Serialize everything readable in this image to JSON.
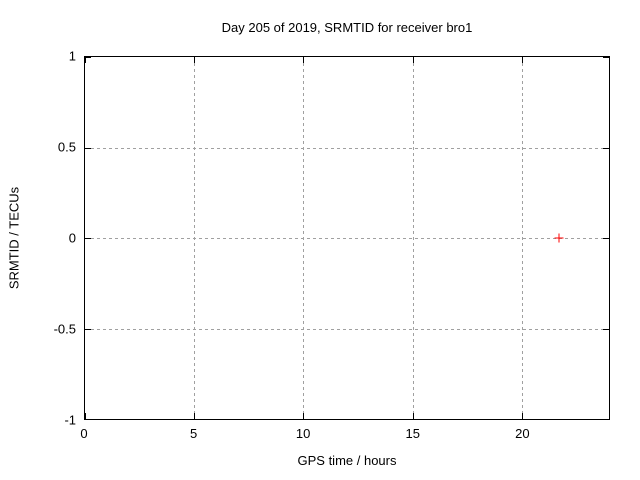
{
  "chart_data": {
    "type": "scatter",
    "title": "Day 205 of 2019, SRMTID for receiver bro1",
    "xlabel": "GPS time / hours",
    "ylabel": "SRMTID / TECUs",
    "xlim": [
      0,
      24
    ],
    "ylim": [
      -1,
      1
    ],
    "xticks": [
      0,
      5,
      10,
      15,
      20
    ],
    "yticks": [
      1,
      0.5,
      0,
      -0.5,
      -1
    ],
    "grid": true,
    "legend_position": "none",
    "series": [
      {
        "name": "SRMTID",
        "marker": "plus",
        "color": "#ff0000",
        "points": [
          {
            "x": 21.7,
            "y": 0
          }
        ]
      }
    ]
  },
  "colors": {
    "background": "#ffffff",
    "axis_border": "#000000",
    "grid": "#a0a0a0",
    "text": "#000000",
    "marker": "#ff0000"
  }
}
